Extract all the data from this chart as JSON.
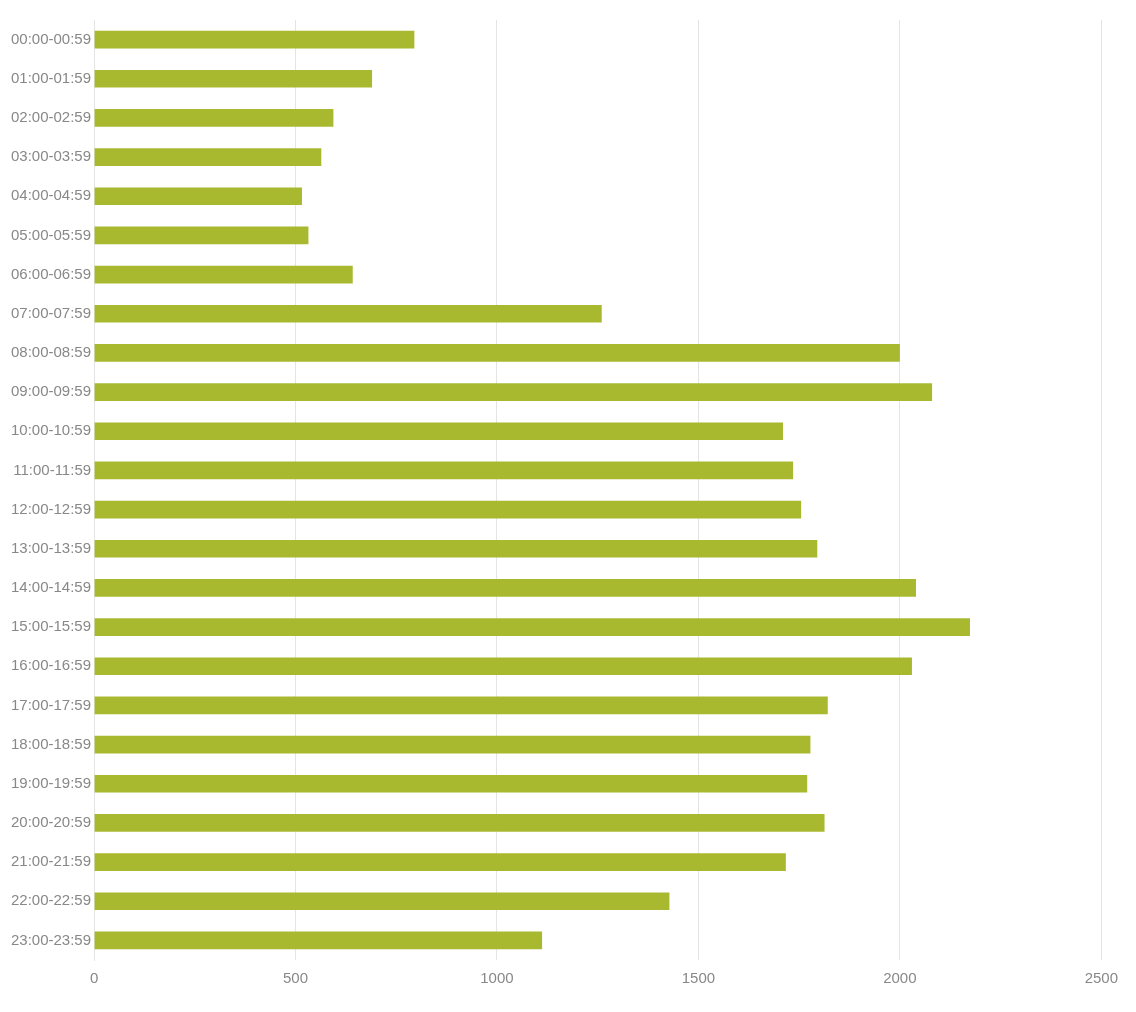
{
  "chart_data": {
    "type": "bar",
    "orientation": "horizontal",
    "categories": [
      "00:00-00:59",
      "01:00-01:59",
      "02:00-02:59",
      "03:00-03:59",
      "04:00-04:59",
      "05:00-05:59",
      "06:00-06:59",
      "07:00-07:59",
      "08:00-08:59",
      "09:00-09:59",
      "10:00-10:59",
      "11:00-11:59",
      "12:00-12:59",
      "13:00-13:59",
      "14:00-14:59",
      "15:00-15:59",
      "16:00-16:59",
      "17:00-17:59",
      "18:00-18:59",
      "19:00-19:59",
      "20:00-20:59",
      "21:00-21:59",
      "22:00-22:59",
      "23:00-23:59"
    ],
    "values": [
      795,
      690,
      594,
      564,
      516,
      532,
      642,
      1260,
      2000,
      2080,
      1710,
      1735,
      1755,
      1795,
      2040,
      2174,
      2030,
      1821,
      1778,
      1770,
      1813,
      1717,
      1428,
      1112
    ],
    "color": "#a8b92f",
    "xlim": [
      0,
      2500
    ],
    "xticks": [
      0,
      500,
      1000,
      1500,
      2000,
      2500
    ],
    "grid": "x"
  }
}
